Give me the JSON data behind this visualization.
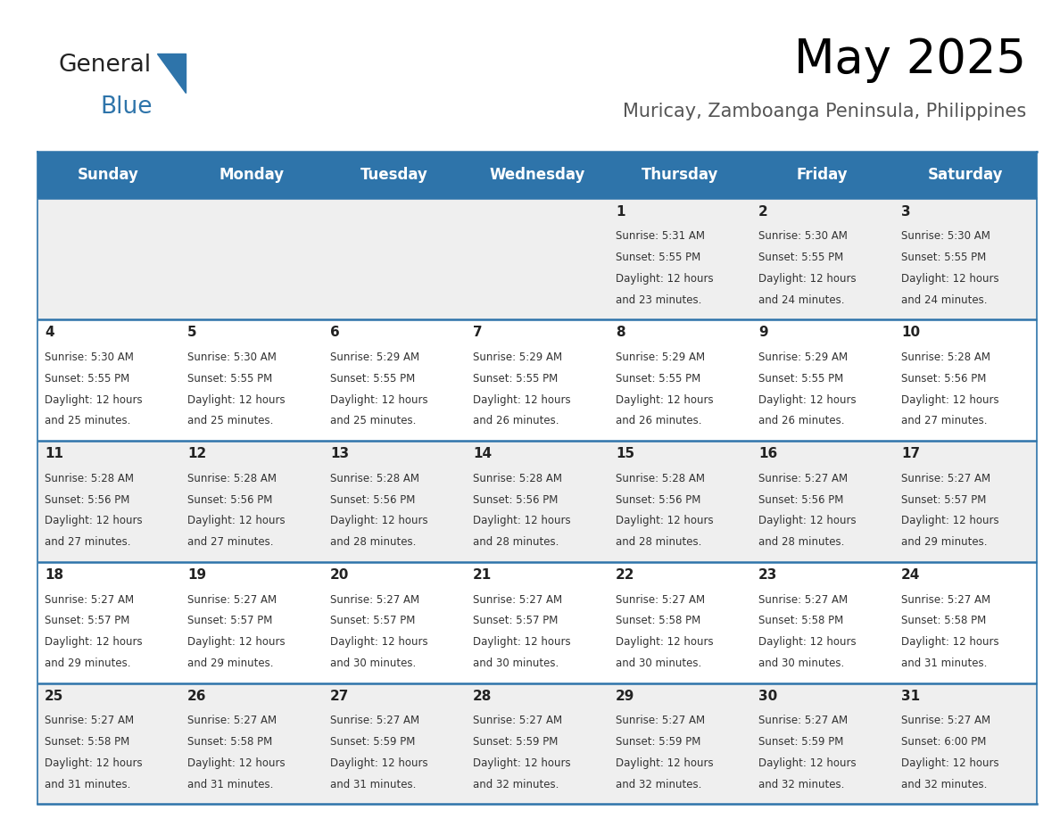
{
  "title": "May 2025",
  "subtitle": "Muricay, Zamboanga Peninsula, Philippines",
  "days_of_week": [
    "Sunday",
    "Monday",
    "Tuesday",
    "Wednesday",
    "Thursday",
    "Friday",
    "Saturday"
  ],
  "header_bg": "#2E74AA",
  "header_text": "#FFFFFF",
  "row_bg_odd": "#EFEFEF",
  "row_bg_even": "#FFFFFF",
  "divider_color": "#2E74AA",
  "text_color": "#333333",
  "number_color": "#222222",
  "calendar_data": [
    [
      null,
      null,
      null,
      null,
      {
        "day": 1,
        "sunrise": "5:31 AM",
        "sunset": "5:55 PM",
        "daylight_line1": "Daylight: 12 hours",
        "daylight_line2": "and 23 minutes."
      },
      {
        "day": 2,
        "sunrise": "5:30 AM",
        "sunset": "5:55 PM",
        "daylight_line1": "Daylight: 12 hours",
        "daylight_line2": "and 24 minutes."
      },
      {
        "day": 3,
        "sunrise": "5:30 AM",
        "sunset": "5:55 PM",
        "daylight_line1": "Daylight: 12 hours",
        "daylight_line2": "and 24 minutes."
      }
    ],
    [
      {
        "day": 4,
        "sunrise": "5:30 AM",
        "sunset": "5:55 PM",
        "daylight_line1": "Daylight: 12 hours",
        "daylight_line2": "and 25 minutes."
      },
      {
        "day": 5,
        "sunrise": "5:30 AM",
        "sunset": "5:55 PM",
        "daylight_line1": "Daylight: 12 hours",
        "daylight_line2": "and 25 minutes."
      },
      {
        "day": 6,
        "sunrise": "5:29 AM",
        "sunset": "5:55 PM",
        "daylight_line1": "Daylight: 12 hours",
        "daylight_line2": "and 25 minutes."
      },
      {
        "day": 7,
        "sunrise": "5:29 AM",
        "sunset": "5:55 PM",
        "daylight_line1": "Daylight: 12 hours",
        "daylight_line2": "and 26 minutes."
      },
      {
        "day": 8,
        "sunrise": "5:29 AM",
        "sunset": "5:55 PM",
        "daylight_line1": "Daylight: 12 hours",
        "daylight_line2": "and 26 minutes."
      },
      {
        "day": 9,
        "sunrise": "5:29 AM",
        "sunset": "5:55 PM",
        "daylight_line1": "Daylight: 12 hours",
        "daylight_line2": "and 26 minutes."
      },
      {
        "day": 10,
        "sunrise": "5:28 AM",
        "sunset": "5:56 PM",
        "daylight_line1": "Daylight: 12 hours",
        "daylight_line2": "and 27 minutes."
      }
    ],
    [
      {
        "day": 11,
        "sunrise": "5:28 AM",
        "sunset": "5:56 PM",
        "daylight_line1": "Daylight: 12 hours",
        "daylight_line2": "and 27 minutes."
      },
      {
        "day": 12,
        "sunrise": "5:28 AM",
        "sunset": "5:56 PM",
        "daylight_line1": "Daylight: 12 hours",
        "daylight_line2": "and 27 minutes."
      },
      {
        "day": 13,
        "sunrise": "5:28 AM",
        "sunset": "5:56 PM",
        "daylight_line1": "Daylight: 12 hours",
        "daylight_line2": "and 28 minutes."
      },
      {
        "day": 14,
        "sunrise": "5:28 AM",
        "sunset": "5:56 PM",
        "daylight_line1": "Daylight: 12 hours",
        "daylight_line2": "and 28 minutes."
      },
      {
        "day": 15,
        "sunrise": "5:28 AM",
        "sunset": "5:56 PM",
        "daylight_line1": "Daylight: 12 hours",
        "daylight_line2": "and 28 minutes."
      },
      {
        "day": 16,
        "sunrise": "5:27 AM",
        "sunset": "5:56 PM",
        "daylight_line1": "Daylight: 12 hours",
        "daylight_line2": "and 28 minutes."
      },
      {
        "day": 17,
        "sunrise": "5:27 AM",
        "sunset": "5:57 PM",
        "daylight_line1": "Daylight: 12 hours",
        "daylight_line2": "and 29 minutes."
      }
    ],
    [
      {
        "day": 18,
        "sunrise": "5:27 AM",
        "sunset": "5:57 PM",
        "daylight_line1": "Daylight: 12 hours",
        "daylight_line2": "and 29 minutes."
      },
      {
        "day": 19,
        "sunrise": "5:27 AM",
        "sunset": "5:57 PM",
        "daylight_line1": "Daylight: 12 hours",
        "daylight_line2": "and 29 minutes."
      },
      {
        "day": 20,
        "sunrise": "5:27 AM",
        "sunset": "5:57 PM",
        "daylight_line1": "Daylight: 12 hours",
        "daylight_line2": "and 30 minutes."
      },
      {
        "day": 21,
        "sunrise": "5:27 AM",
        "sunset": "5:57 PM",
        "daylight_line1": "Daylight: 12 hours",
        "daylight_line2": "and 30 minutes."
      },
      {
        "day": 22,
        "sunrise": "5:27 AM",
        "sunset": "5:58 PM",
        "daylight_line1": "Daylight: 12 hours",
        "daylight_line2": "and 30 minutes."
      },
      {
        "day": 23,
        "sunrise": "5:27 AM",
        "sunset": "5:58 PM",
        "daylight_line1": "Daylight: 12 hours",
        "daylight_line2": "and 30 minutes."
      },
      {
        "day": 24,
        "sunrise": "5:27 AM",
        "sunset": "5:58 PM",
        "daylight_line1": "Daylight: 12 hours",
        "daylight_line2": "and 31 minutes."
      }
    ],
    [
      {
        "day": 25,
        "sunrise": "5:27 AM",
        "sunset": "5:58 PM",
        "daylight_line1": "Daylight: 12 hours",
        "daylight_line2": "and 31 minutes."
      },
      {
        "day": 26,
        "sunrise": "5:27 AM",
        "sunset": "5:58 PM",
        "daylight_line1": "Daylight: 12 hours",
        "daylight_line2": "and 31 minutes."
      },
      {
        "day": 27,
        "sunrise": "5:27 AM",
        "sunset": "5:59 PM",
        "daylight_line1": "Daylight: 12 hours",
        "daylight_line2": "and 31 minutes."
      },
      {
        "day": 28,
        "sunrise": "5:27 AM",
        "sunset": "5:59 PM",
        "daylight_line1": "Daylight: 12 hours",
        "daylight_line2": "and 32 minutes."
      },
      {
        "day": 29,
        "sunrise": "5:27 AM",
        "sunset": "5:59 PM",
        "daylight_line1": "Daylight: 12 hours",
        "daylight_line2": "and 32 minutes."
      },
      {
        "day": 30,
        "sunrise": "5:27 AM",
        "sunset": "5:59 PM",
        "daylight_line1": "Daylight: 12 hours",
        "daylight_line2": "and 32 minutes."
      },
      {
        "day": 31,
        "sunrise": "5:27 AM",
        "sunset": "6:00 PM",
        "daylight_line1": "Daylight: 12 hours",
        "daylight_line2": "and 32 minutes."
      }
    ]
  ],
  "logo_color_general": "#222222",
  "logo_color_blue": "#2E74AA",
  "title_fontsize": 38,
  "subtitle_fontsize": 15,
  "header_fontsize": 12,
  "day_number_fontsize": 11,
  "cell_text_fontsize": 8.5
}
